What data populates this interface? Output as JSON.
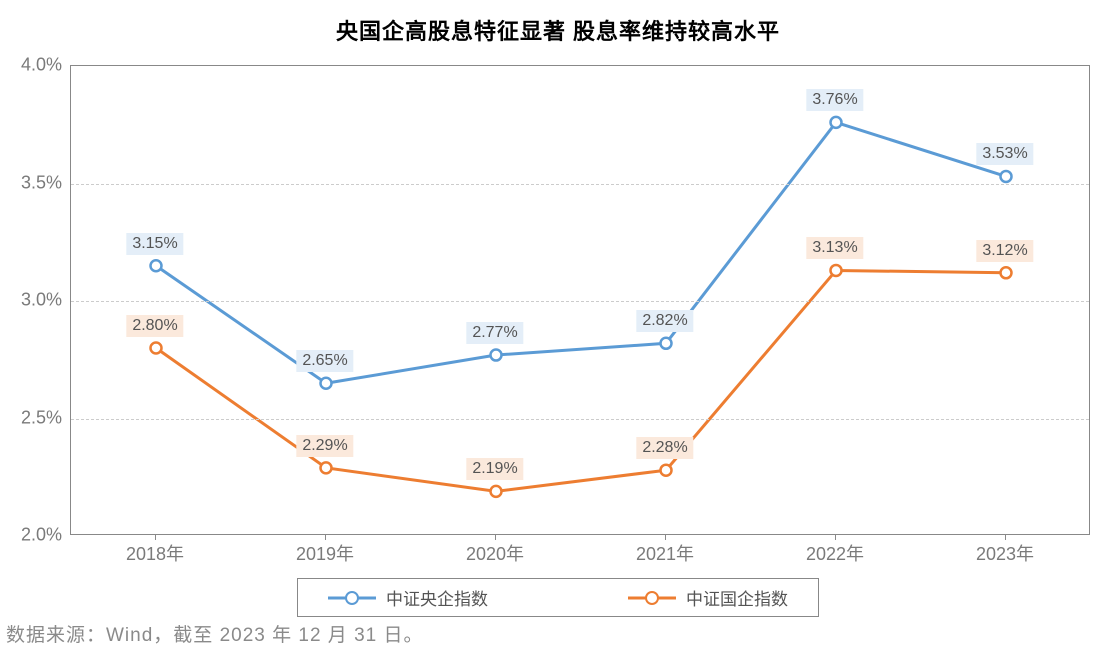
{
  "title": "央国企高股息特征显著 股息率维持较高水平",
  "title_fontsize": 22,
  "chart": {
    "type": "line",
    "background_color": "#ffffff",
    "grid_color": "#cccccc",
    "border_color": "#888888",
    "categories": [
      "2018年",
      "2019年",
      "2020年",
      "2021年",
      "2022年",
      "2023年"
    ],
    "ylim": [
      2.0,
      4.0
    ],
    "ytick_step": 0.5,
    "y_ticks": [
      "2.0%",
      "2.5%",
      "3.0%",
      "3.5%",
      "4.0%"
    ],
    "axis_label_color": "#7a7a7a",
    "axis_label_fontsize": 18,
    "line_width": 3,
    "marker_radius": 5.5,
    "marker_fill": "#ffffff",
    "data_label_fontsize": 16,
    "data_label_text_color": "#545454",
    "series": [
      {
        "name": "中证央企指数",
        "color": "#5b9bd5",
        "label_bg": "#e4eef8",
        "values": [
          3.15,
          2.65,
          2.77,
          2.82,
          3.76,
          3.53
        ],
        "value_labels": [
          "3.15%",
          "2.65%",
          "2.77%",
          "2.82%",
          "3.76%",
          "3.53%"
        ]
      },
      {
        "name": "中证国企指数",
        "color": "#ed7d31",
        "label_bg": "#fbe9dc",
        "values": [
          2.8,
          2.29,
          2.19,
          2.28,
          3.13,
          3.12
        ],
        "value_labels": [
          "2.80%",
          "2.29%",
          "2.19%",
          "2.28%",
          "3.13%",
          "3.12%"
        ]
      }
    ],
    "legend_border_color": "#888888"
  },
  "footnote": "数据来源：Wind，截至 2023 年 12 月 31 日。"
}
